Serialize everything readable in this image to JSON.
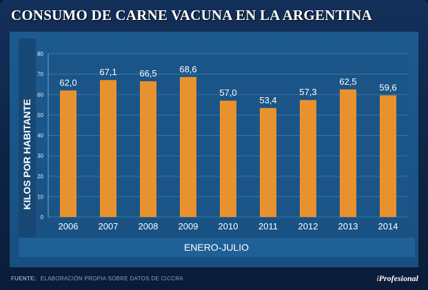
{
  "header": {
    "title": "CONSUMO DE CARNE VACUNA EN LA ARGENTINA"
  },
  "footer": {
    "source_label": "FUENTE:",
    "source_text": "ELABORACIÓN PROPIA SOBRE DATOS DE CICCRA",
    "logo_prefix": "i",
    "logo_text": "Profesional"
  },
  "colors": {
    "bar": "#e8922f",
    "panel": "#1a5487",
    "background": "#0d2447"
  },
  "chart_data": {
    "type": "bar",
    "title": "CONSUMO DE CARNE VACUNA EN LA ARGENTINA",
    "categories": [
      "2006",
      "2007",
      "2008",
      "2009",
      "2010",
      "2011",
      "2012",
      "2013",
      "2014"
    ],
    "values": [
      62.0,
      67.1,
      66.5,
      68.6,
      57.0,
      53.4,
      57.3,
      62.5,
      59.6
    ],
    "value_labels": [
      "62,0",
      "67,1",
      "66,5",
      "68,6",
      "57,0",
      "53,4",
      "57,3",
      "62,5",
      "59,6"
    ],
    "ylabel": "KILOS POR HABITANTE",
    "xlabel": "ENERO-JULIO",
    "ylim": [
      0,
      80
    ],
    "yticks": [
      0,
      10,
      20,
      30,
      40,
      50,
      60,
      70,
      80
    ],
    "grid": true
  }
}
